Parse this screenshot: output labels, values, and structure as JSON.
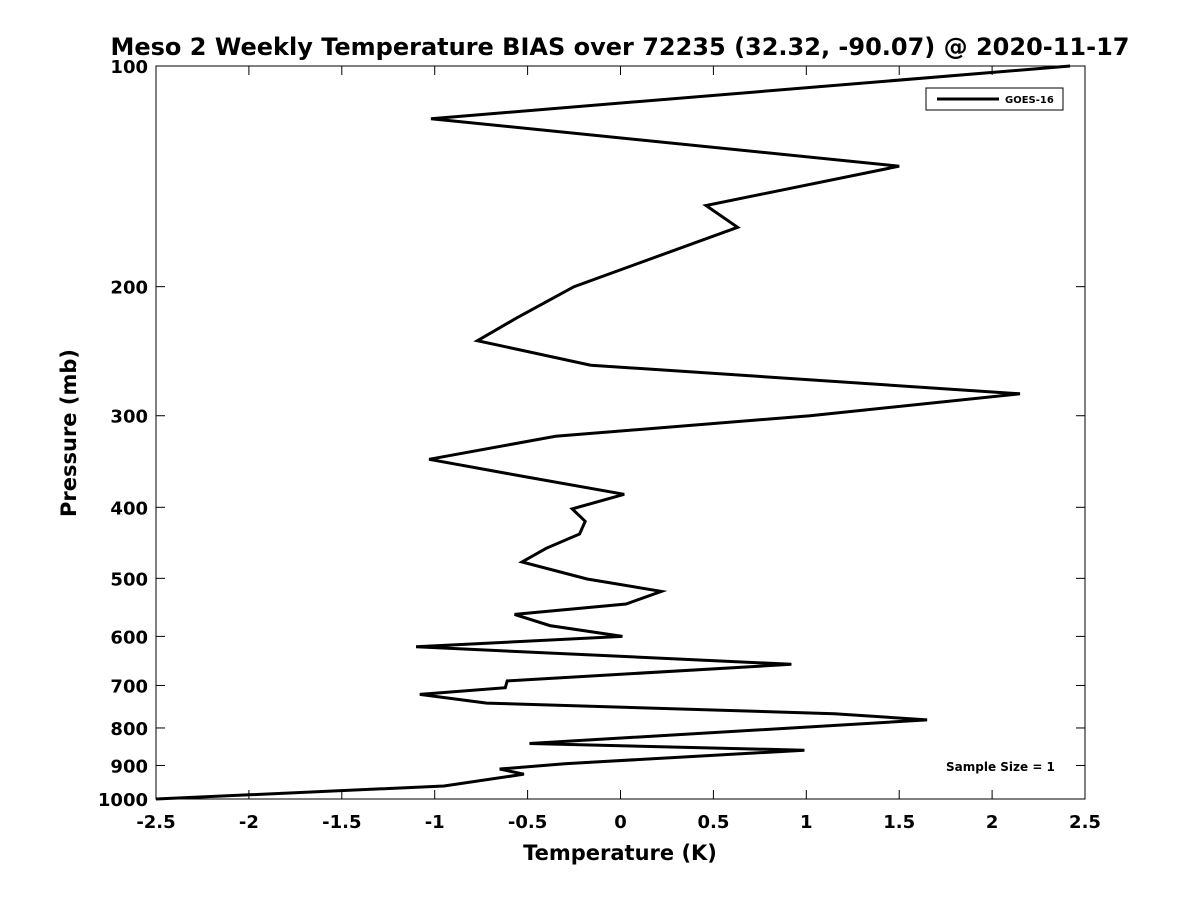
{
  "chart_data": {
    "type": "line",
    "title": "Meso 2 Weekly Temperature BIAS over 72235 (32.32, -90.07) @ 2020-11-17",
    "xlabel": "Temperature (K)",
    "ylabel": "Pressure (mb)",
    "xlim": [
      -2.5,
      2.5
    ],
    "ylim": [
      100,
      1000
    ],
    "yscale": "log",
    "yreversed": true,
    "grid": false,
    "x_ticks": [
      -2.5,
      -2,
      -1.5,
      -1,
      -0.5,
      0,
      0.5,
      1,
      1.5,
      2,
      2.5
    ],
    "x_tick_labels": [
      "-2.5",
      "-2",
      "-1.5",
      "-1",
      "-0.5",
      "0",
      "0.5",
      "1",
      "1.5",
      "2",
      "2.5"
    ],
    "y_ticks": [
      100,
      200,
      300,
      400,
      500,
      600,
      700,
      800,
      900,
      1000
    ],
    "y_tick_labels": [
      "100",
      "200",
      "300",
      "400",
      "500",
      "600",
      "700",
      "800",
      "900",
      "1000"
    ],
    "legend": {
      "placement": "top-right",
      "entries": [
        "GOES-16"
      ]
    },
    "annotation": "Sample Size = 1",
    "series": [
      {
        "name": "GOES-16",
        "color": "#000000",
        "points": [
          {
            "t": 2.42,
            "p": 100
          },
          {
            "t": -1.02,
            "p": 118
          },
          {
            "t": 1.5,
            "p": 137
          },
          {
            "t": 0.46,
            "p": 155
          },
          {
            "t": 0.63,
            "p": 166
          },
          {
            "t": -0.25,
            "p": 200
          },
          {
            "t": -0.55,
            "p": 220
          },
          {
            "t": -0.77,
            "p": 237
          },
          {
            "t": -0.16,
            "p": 256
          },
          {
            "t": 2.15,
            "p": 280
          },
          {
            "t": 1.02,
            "p": 300
          },
          {
            "t": -0.35,
            "p": 320
          },
          {
            "t": -1.03,
            "p": 344
          },
          {
            "t": -0.55,
            "p": 362
          },
          {
            "t": 0.02,
            "p": 384
          },
          {
            "t": -0.26,
            "p": 402
          },
          {
            "t": -0.19,
            "p": 418
          },
          {
            "t": -0.22,
            "p": 435
          },
          {
            "t": -0.4,
            "p": 455
          },
          {
            "t": -0.53,
            "p": 475
          },
          {
            "t": -0.18,
            "p": 501
          },
          {
            "t": 0.22,
            "p": 521
          },
          {
            "t": 0.03,
            "p": 542
          },
          {
            "t": -0.57,
            "p": 560
          },
          {
            "t": -0.38,
            "p": 580
          },
          {
            "t": 0.01,
            "p": 600
          },
          {
            "t": -1.1,
            "p": 620
          },
          {
            "t": 0.92,
            "p": 655
          },
          {
            "t": -0.61,
            "p": 690
          },
          {
            "t": -0.62,
            "p": 705
          },
          {
            "t": -1.08,
            "p": 720
          },
          {
            "t": -0.72,
            "p": 740
          },
          {
            "t": 1.15,
            "p": 765
          },
          {
            "t": 1.65,
            "p": 780
          },
          {
            "t": -0.49,
            "p": 840
          },
          {
            "t": 0.99,
            "p": 858
          },
          {
            "t": -0.3,
            "p": 895
          },
          {
            "t": -0.65,
            "p": 910
          },
          {
            "t": -0.52,
            "p": 925
          },
          {
            "t": -0.95,
            "p": 960
          },
          {
            "t": -2.5,
            "p": 1000
          }
        ]
      }
    ]
  }
}
